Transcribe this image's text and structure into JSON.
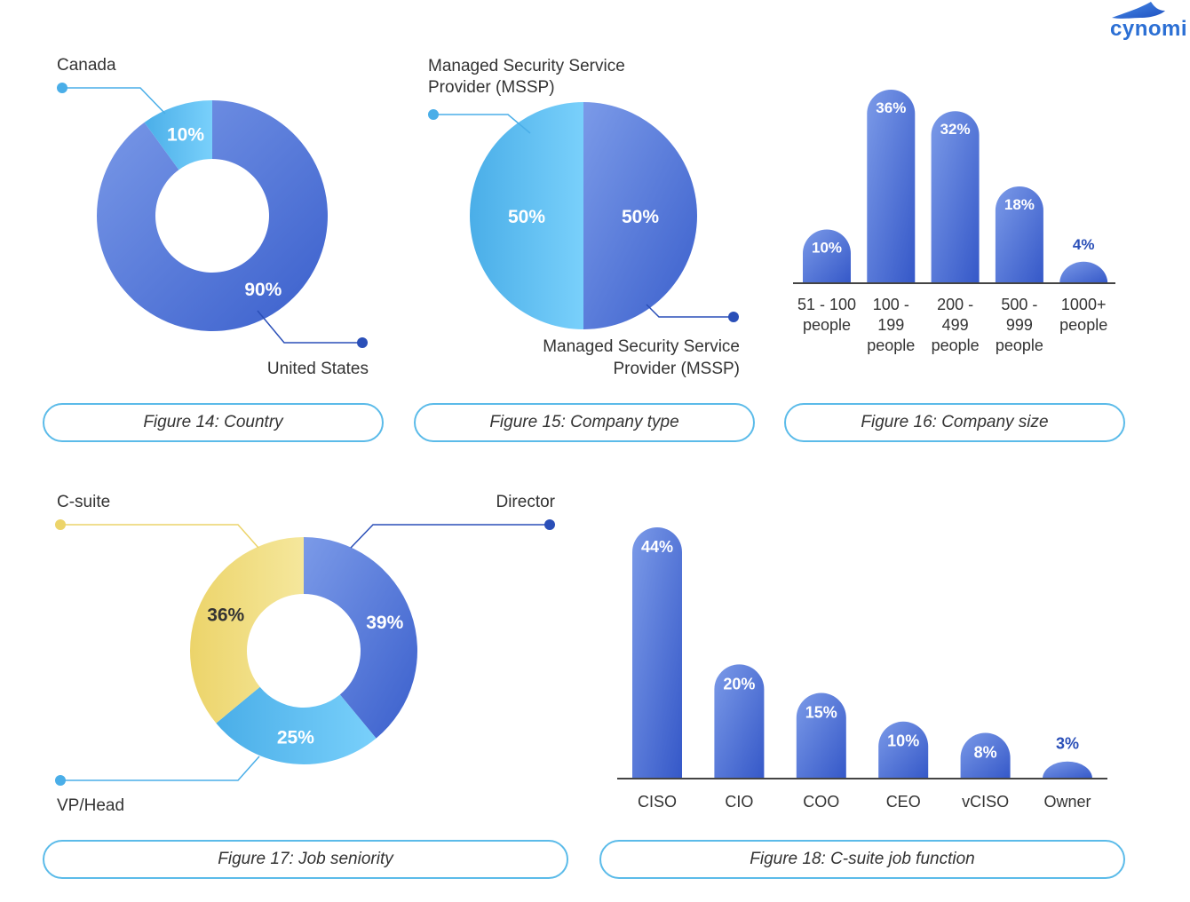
{
  "brand": {
    "name": "cynomi"
  },
  "colors": {
    "blue_dark": "#3a5fcc",
    "blue_light": "#7b9ae8",
    "cyan_dark": "#4aaee8",
    "cyan_light": "#79d0fb",
    "yellow_dark": "#ecd46a",
    "yellow_light": "#f5e79c",
    "axis": "#444444"
  },
  "chart_data": [
    {
      "type": "pie",
      "variant": "donut",
      "caption": "Figure 14: Country",
      "slices": [
        {
          "label": "United States",
          "value": 90,
          "display": "90%"
        },
        {
          "label": "Canada",
          "value": 10,
          "display": "10%"
        }
      ]
    },
    {
      "type": "pie",
      "caption": "Figure 15: Company type",
      "slices": [
        {
          "label": "Managed Security Service Provider (MSSP)",
          "value": 50,
          "display": "50%"
        },
        {
          "label": "Managed Security Service Provider (MSSP)",
          "value": 50,
          "display": "50%"
        }
      ]
    },
    {
      "type": "bar",
      "caption": "Figure 16: Company size",
      "categories": [
        [
          "51 - 100",
          "people"
        ],
        [
          "100 -",
          "199",
          "people"
        ],
        [
          "200 -",
          "499",
          "people"
        ],
        [
          "500 -",
          "999",
          "people"
        ],
        [
          "1000+",
          "people"
        ]
      ],
      "values": [
        10,
        36,
        32,
        18,
        4
      ],
      "value_labels": [
        "10%",
        "36%",
        "32%",
        "18%",
        "4%"
      ],
      "ylim": [
        0,
        36
      ]
    },
    {
      "type": "pie",
      "variant": "donut",
      "caption": "Figure 17: Job seniority",
      "slices": [
        {
          "label": "Director",
          "value": 39,
          "display": "39%"
        },
        {
          "label": "VP/Head",
          "value": 25,
          "display": "25%"
        },
        {
          "label": "C-suite",
          "value": 36,
          "display": "36%"
        }
      ]
    },
    {
      "type": "bar",
      "caption": "Figure 18: C-suite job function",
      "categories": [
        "CISO",
        "CIO",
        "COO",
        "CEO",
        "vCISO",
        "Owner"
      ],
      "values": [
        44,
        20,
        15,
        10,
        8,
        3
      ],
      "value_labels": [
        "44%",
        "20%",
        "15%",
        "10%",
        "8%",
        "3%"
      ],
      "ylim": [
        0,
        44
      ]
    }
  ]
}
